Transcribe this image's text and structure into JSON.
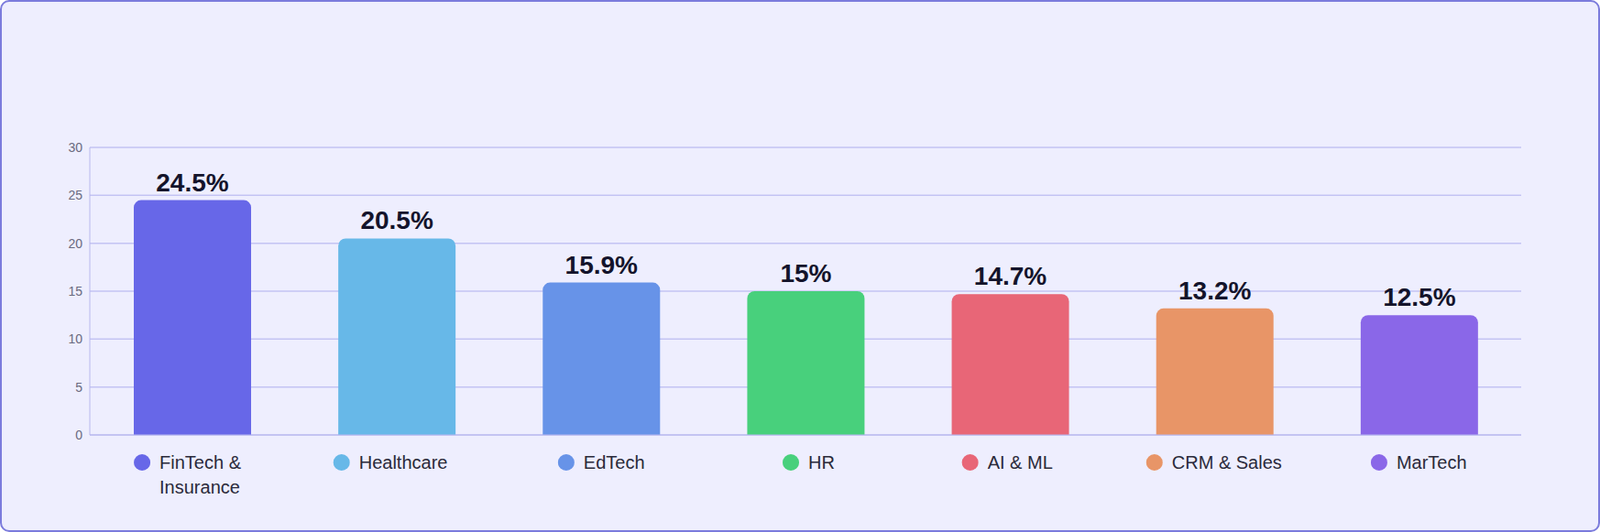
{
  "chart_data": {
    "type": "bar",
    "categories": [
      "FinTech & Insurance",
      "Healthcare",
      "EdTech",
      "HR",
      "AI & ML",
      "CRM & Sales",
      "MarTech"
    ],
    "values": [
      24.5,
      20.5,
      15.9,
      15,
      14.7,
      13.2,
      12.5
    ],
    "value_labels": [
      "24.5%",
      "20.5%",
      "15.9%",
      "15%",
      "14.7%",
      "13.2%",
      "12.5%"
    ],
    "colors": [
      "#6767e8",
      "#67b8e8",
      "#6793e8",
      "#48d07c",
      "#e86677",
      "#e89567",
      "#8a67e8"
    ],
    "ylim": [
      0,
      30
    ],
    "yticks": [
      0,
      5,
      10,
      15,
      20,
      25,
      30
    ],
    "grid": true,
    "data_labels": true
  }
}
